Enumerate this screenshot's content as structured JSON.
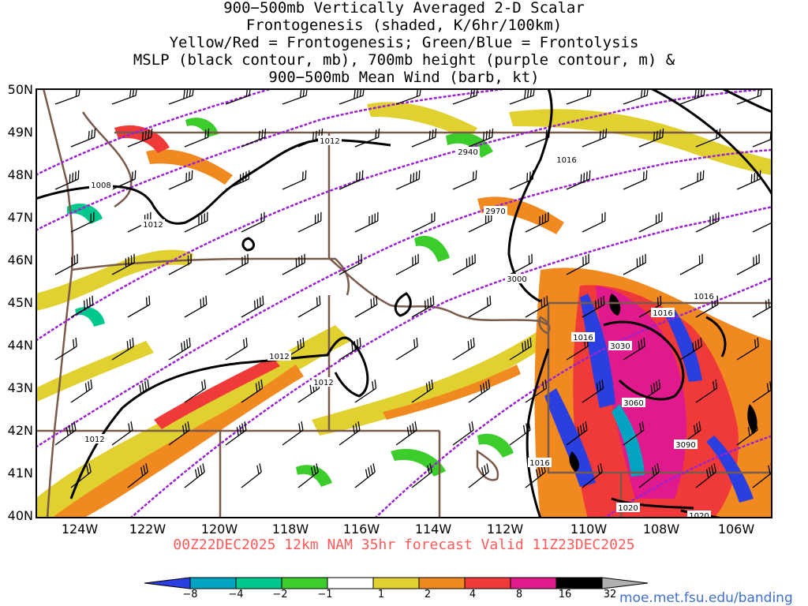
{
  "title_lines": [
    "900−500mb Vertically Averaged 2-D Scalar",
    "Frontogenesis (shaded, K/6hr/100km)",
    "Yellow/Red = Frontogenesis;  Green/Blue = Frontolysis",
    "MSLP (black contour, mb), 700mb height (purple contour, m) &",
    "900−500mb Mean Wind (barb, kt)"
  ],
  "latitude_labels": [
    "50N",
    "49N",
    "48N",
    "47N",
    "46N",
    "45N",
    "44N",
    "43N",
    "42N",
    "41N",
    "40N"
  ],
  "longitude_labels": [
    "124W",
    "122W",
    "120W",
    "118W",
    "116W",
    "114W",
    "112W",
    "110W",
    "108W",
    "106W"
  ],
  "valid_text": "00Z22DEC2025 12km NAM 35hr forecast Valid 11Z23DEC2025",
  "credit": "moe.met.fsu.edu/banding",
  "colorbar": {
    "labels": [
      "−8",
      "−4",
      "−2",
      "−1",
      "1",
      "2",
      "4",
      "8",
      "16",
      "32"
    ],
    "colors": [
      "#2b3fe0",
      "#00a4c0",
      "#00c88c",
      "#3ccc2c",
      "#ffffff",
      "#e0d030",
      "#f08a20",
      "#f03a3a",
      "#e01a8c",
      "#000000",
      "#b0b0b0"
    ]
  },
  "mslp_labels": [
    "1012",
    "1008",
    "1012",
    "1016",
    "1012",
    "1012",
    "1012",
    "1016",
    "1016",
    "1016",
    "1016",
    "1020",
    "1020"
  ],
  "height_labels": [
    "2940",
    "2970",
    "3000",
    "3030",
    "3060",
    "3090"
  ],
  "colors": {
    "mslp": "#000000",
    "height": "#9a22d0",
    "border": "#7a5a4a",
    "barb": "#000000"
  }
}
